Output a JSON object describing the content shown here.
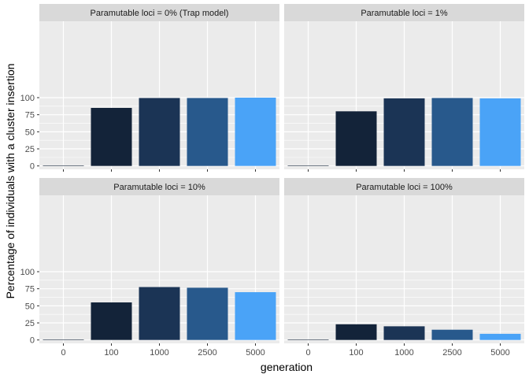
{
  "chart_data": {
    "type": "bar",
    "xlabel": "generation",
    "ylabel": "Percentage of individuals with a cluster insertion",
    "categories": [
      "0",
      "100",
      "1000",
      "2500",
      "5000"
    ],
    "yticks": [
      0,
      25,
      50,
      75,
      100
    ],
    "ylim": [
      -5,
      110
    ],
    "grid": true,
    "legend": "none",
    "bar_colors": [
      "#132339",
      "#132339",
      "#1b3455",
      "#28598c",
      "#4aa3f7"
    ],
    "panel_bg": "#ebebeb",
    "strip_bg": "#d9d9d9",
    "panels": [
      {
        "label": "Paramutable loci = 0% (Trap model)",
        "values": [
          0,
          85,
          99.5,
          99.5,
          100
        ]
      },
      {
        "label": "Paramutable loci = 1%",
        "values": [
          0,
          80,
          99,
          99.5,
          99
        ]
      },
      {
        "label": "Paramutable loci = 10%",
        "values": [
          0,
          55,
          77.5,
          76.5,
          70
        ]
      },
      {
        "label": "Paramutable loci = 100%",
        "values": [
          0,
          23,
          20,
          15,
          9
        ]
      }
    ]
  }
}
